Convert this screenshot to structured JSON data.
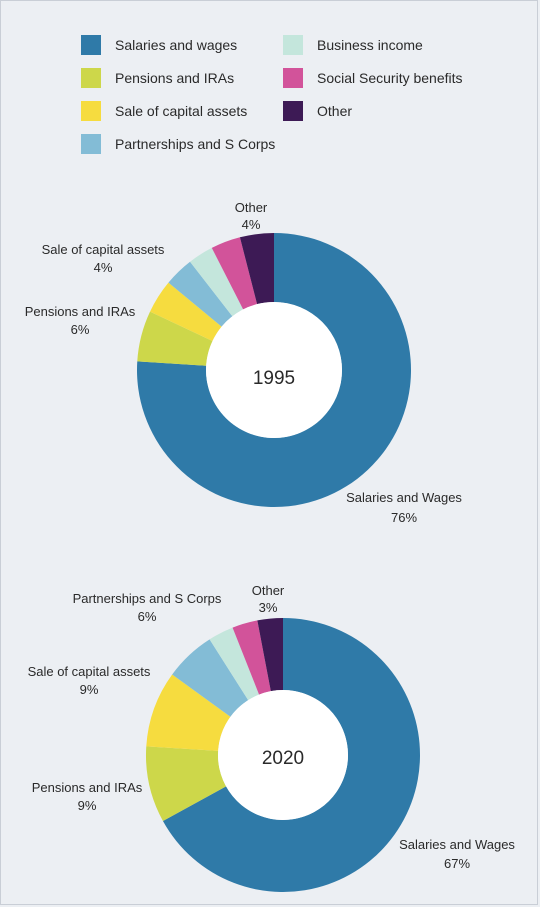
{
  "legend": {
    "items": [
      {
        "label": "Salaries and wages",
        "color": "#2f7aa8"
      },
      {
        "label": "Pensions and IRAs",
        "color": "#cdd74a"
      },
      {
        "label": "Sale of capital assets",
        "color": "#f6dc3f"
      },
      {
        "label": "Partnerships and S Corps",
        "color": "#83bcd6"
      },
      {
        "label": "Business income",
        "color": "#c4e6dc"
      },
      {
        "label": "Social Security benefits",
        "color": "#d2539a"
      },
      {
        "label": "Other",
        "color": "#3d1a55"
      }
    ]
  },
  "chart_data": [
    {
      "type": "pie",
      "center_label": "1995",
      "labels": [
        "Salaries and Wages",
        "Pensions and IRAs",
        "Sale of capital assets",
        "Partnerships and S Corps",
        "Business income",
        "Social Security benefits",
        "Other"
      ],
      "values": [
        76,
        6,
        4,
        3.5,
        3,
        3.5,
        4
      ],
      "colors": [
        "#2f7aa8",
        "#cdd74a",
        "#f6dc3f",
        "#83bcd6",
        "#c4e6dc",
        "#d2539a",
        "#3d1a55"
      ],
      "annotations": [
        {
          "name": "Salaries and Wages",
          "pct": "76%"
        },
        {
          "name": "Pensions and IRAs",
          "pct": "6%"
        },
        {
          "name": "Sale of capital assets",
          "pct": "4%"
        },
        {
          "name": "Other",
          "pct": "4%"
        }
      ]
    },
    {
      "type": "pie",
      "center_label": "2020",
      "labels": [
        "Salaries and Wages",
        "Pensions and IRAs",
        "Sale of capital assets",
        "Partnerships and S Corps",
        "Business income",
        "Social Security benefits",
        "Other"
      ],
      "values": [
        67,
        9,
        9,
        6,
        3,
        3,
        3
      ],
      "colors": [
        "#2f7aa8",
        "#cdd74a",
        "#f6dc3f",
        "#83bcd6",
        "#c4e6dc",
        "#d2539a",
        "#3d1a55"
      ],
      "annotations": [
        {
          "name": "Salaries and Wages",
          "pct": "67%"
        },
        {
          "name": "Pensions and IRAs",
          "pct": "9%"
        },
        {
          "name": "Sale of capital assets",
          "pct": "9%"
        },
        {
          "name": "Partnerships and S Corps",
          "pct": "6%"
        },
        {
          "name": "Other",
          "pct": "3%"
        }
      ]
    }
  ]
}
